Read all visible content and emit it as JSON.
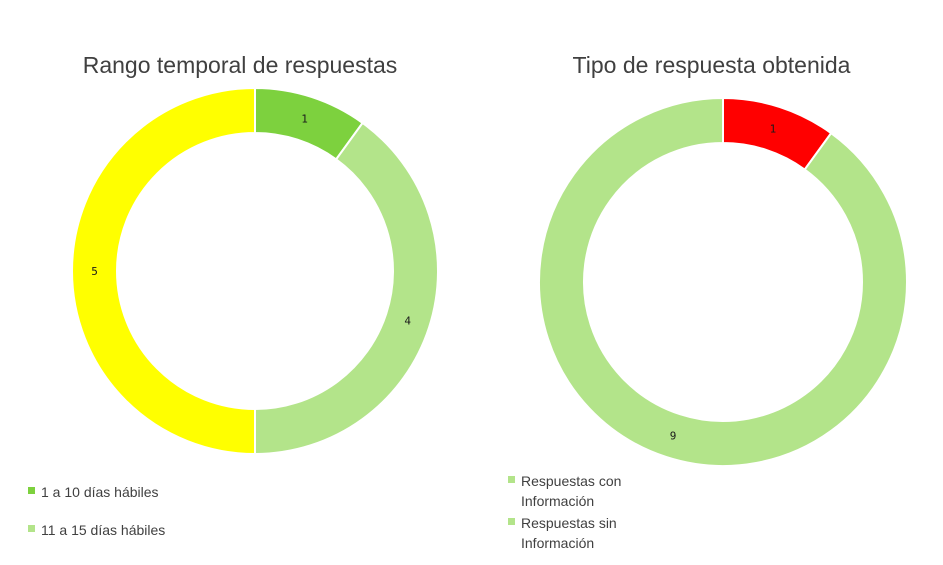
{
  "chart_data": [
    {
      "type": "pie",
      "title": "Rango temporal de respuestas",
      "categories": [
        "1 a 10 días hábiles",
        "11 a 15 días hábiles",
        ""
      ],
      "values": [
        1,
        4,
        5
      ],
      "colors": [
        "#7dd13e",
        "#b3e48a",
        "#ffff00"
      ],
      "legend": [
        "1 a 10 días hábiles",
        "11 a 15 días hábiles"
      ],
      "legend_colors": [
        "#7dd13e",
        "#b3e48a"
      ]
    },
    {
      "type": "pie",
      "title": "Tipo de respuesta obtenida",
      "categories": [
        "Respuestas sin Información",
        "Respuestas con Información"
      ],
      "values": [
        1,
        9
      ],
      "colors": [
        "#ff0000",
        "#b3e48a"
      ],
      "legend": [
        "Respuestas con Información",
        "Respuestas sin Información"
      ],
      "legend_colors": [
        "#b3e48a",
        "#b3e48a"
      ]
    }
  ]
}
